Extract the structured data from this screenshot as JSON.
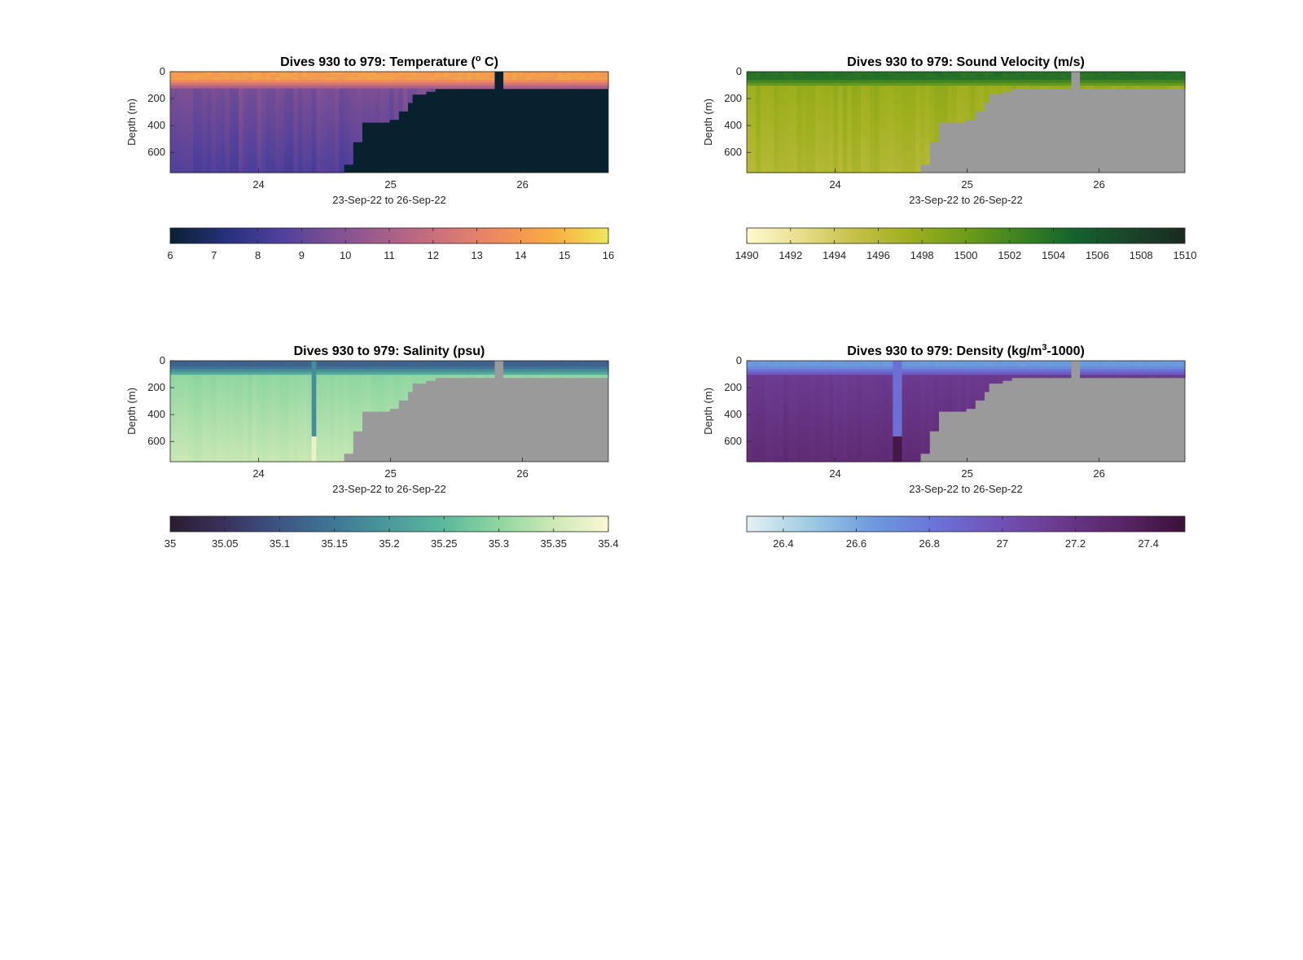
{
  "figure": {
    "background": "#ffffff",
    "land_color": "#9a9a9a"
  },
  "chart_data": [
    {
      "type": "heatmap",
      "id": "temperature",
      "title_main": "Dives 930 to 979: Temperature (",
      "title_sup": "o",
      "title_tail": " C)",
      "xlabel": "23-Sep-22 to 26-Sep-22",
      "ylabel": "Depth (m)",
      "xlim": [
        23.33,
        26.65
      ],
      "ylim": [
        0,
        750
      ],
      "xticks": [
        24,
        25,
        26
      ],
      "yticks": [
        0,
        200,
        400,
        600
      ],
      "clim": [
        6,
        16
      ],
      "cticks": [
        "6",
        "7",
        "8",
        "9",
        "10",
        "11",
        "12",
        "13",
        "14",
        "15",
        "16"
      ],
      "colormap": [
        "#0a2130",
        "#25307a",
        "#4e3f9b",
        "#7d5094",
        "#a86089",
        "#d0727b",
        "#ef8a5e",
        "#f9ad41",
        "#eee85a"
      ],
      "nodata_color": "#08212f",
      "surface_value": 14.2,
      "surface_depth": 60,
      "transition_depth": 120,
      "deep_value": 9.7,
      "step_value": 0.9,
      "bottom_profile": {
        "x": [
          23.33,
          24.58,
          24.65,
          24.72,
          24.78,
          24.85,
          24.92,
          24.98,
          25.05,
          25.12,
          25.18,
          25.25,
          25.33,
          25.45,
          26.65
        ],
        "depth": [
          750,
          750,
          680,
          520,
          380,
          370,
          380,
          360,
          300,
          230,
          170,
          150,
          130,
          120,
          110
        ]
      },
      "gap_x": [
        25.78,
        25.84
      ],
      "anomaly_x": null
    },
    {
      "type": "heatmap",
      "id": "sound_velocity",
      "title_main": "Dives 930 to 979: Sound Velocity (m/s)",
      "title_sup": "",
      "title_tail": "",
      "xlabel": "23-Sep-22 to 26-Sep-22",
      "ylabel": "Depth (m)",
      "xlim": [
        23.33,
        26.65
      ],
      "ylim": [
        0,
        750
      ],
      "xticks": [
        24,
        25,
        26
      ],
      "yticks": [
        0,
        200,
        400,
        600
      ],
      "clim": [
        1490,
        1510
      ],
      "cticks": [
        "1490",
        "1492",
        "1494",
        "1496",
        "1498",
        "1500",
        "1502",
        "1504",
        "1506",
        "1508",
        "1510"
      ],
      "colormap": [
        "#fdfbd0",
        "#e8dd8c",
        "#c4bf46",
        "#9daf1d",
        "#6f9c19",
        "#3c8221",
        "#13622e",
        "#1b442a",
        "#1a2a1e"
      ],
      "nodata_color": "#9a9a9a",
      "surface_value": 1503.8,
      "surface_depth": 50,
      "transition_depth": 110,
      "deep_value": 1497.8,
      "step_value": 1.2,
      "bottom_profile": {
        "x": [
          23.33,
          24.58,
          24.65,
          24.72,
          24.78,
          24.85,
          24.92,
          24.98,
          25.05,
          25.12,
          25.18,
          25.25,
          25.33,
          25.45,
          26.65
        ],
        "depth": [
          750,
          750,
          680,
          520,
          380,
          370,
          380,
          360,
          300,
          230,
          170,
          150,
          130,
          120,
          110
        ]
      },
      "gap_x": [
        25.78,
        25.84
      ],
      "anomaly_x": null
    },
    {
      "type": "heatmap",
      "id": "salinity",
      "title_main": "Dives 930 to 979: Salinity (psu)",
      "title_sup": "",
      "title_tail": "",
      "xlabel": "23-Sep-22 to 26-Sep-22",
      "ylabel": "Depth (m)",
      "xlim": [
        23.33,
        26.65
      ],
      "ylim": [
        0,
        750
      ],
      "xticks": [
        24,
        25,
        26
      ],
      "yticks": [
        0,
        200,
        400,
        600
      ],
      "clim": [
        35,
        35.4
      ],
      "cticks": [
        "35",
        "35.05",
        "35.1",
        "35.15",
        "35.2",
        "35.25",
        "35.3",
        "35.35",
        "35.4"
      ],
      "colormap": [
        "#2a1d2e",
        "#3a315e",
        "#3d5585",
        "#3f7795",
        "#4a9a9b",
        "#5bb99c",
        "#8fd6a2",
        "#cde9b5",
        "#fbf8d5"
      ],
      "nodata_color": "#9a9a9a",
      "surface_value": 35.12,
      "surface_depth": 40,
      "transition_depth": 110,
      "deep_value": 35.3,
      "step_value": 0.012,
      "bottom_profile": {
        "x": [
          23.33,
          24.58,
          24.65,
          24.72,
          24.78,
          24.85,
          24.92,
          24.98,
          25.05,
          25.12,
          25.18,
          25.25,
          25.33,
          25.45,
          26.65
        ],
        "depth": [
          750,
          750,
          680,
          520,
          380,
          370,
          380,
          360,
          300,
          230,
          170,
          150,
          130,
          120,
          110
        ]
      },
      "gap_x": [
        25.78,
        25.84
      ],
      "anomaly_x": [
        24.4,
        24.44
      ]
    },
    {
      "type": "heatmap",
      "id": "density",
      "title_main": "Dives 930 to 979: Density (kg/m",
      "title_sup": "3",
      "title_tail": "-1000)",
      "xlabel": "23-Sep-22 to 26-Sep-22",
      "ylabel": "Depth (m)",
      "xlim": [
        23.33,
        26.65
      ],
      "ylim": [
        0,
        750
      ],
      "xticks": [
        24,
        25,
        26
      ],
      "yticks": [
        0,
        200,
        400,
        600
      ],
      "clim": [
        26.3,
        27.5
      ],
      "cticks": [
        "26.4",
        "26.6",
        "26.8",
        "27",
        "27.2",
        "27.4"
      ],
      "cticks_values": [
        26.4,
        26.6,
        26.8,
        27.0,
        27.2,
        27.4
      ],
      "colormap": [
        "#e6f1f3",
        "#9fcbe3",
        "#6d9bde",
        "#6b74d8",
        "#7152b8",
        "#6b3a8e",
        "#5a2468",
        "#3a1138"
      ],
      "nodata_color": "#9a9a9a",
      "surface_value": 26.65,
      "surface_depth": 40,
      "transition_depth": 110,
      "deep_value": 27.15,
      "step_value": 0.05,
      "bottom_profile": {
        "x": [
          23.33,
          24.58,
          24.65,
          24.72,
          24.78,
          24.85,
          24.92,
          24.98,
          25.05,
          25.12,
          25.18,
          25.25,
          25.33,
          25.45,
          26.65
        ],
        "depth": [
          750,
          750,
          680,
          520,
          380,
          370,
          380,
          360,
          300,
          230,
          170,
          150,
          130,
          120,
          110
        ]
      },
      "gap_x": [
        25.78,
        25.84
      ],
      "anomaly_x": [
        24.45,
        24.49
      ]
    }
  ]
}
